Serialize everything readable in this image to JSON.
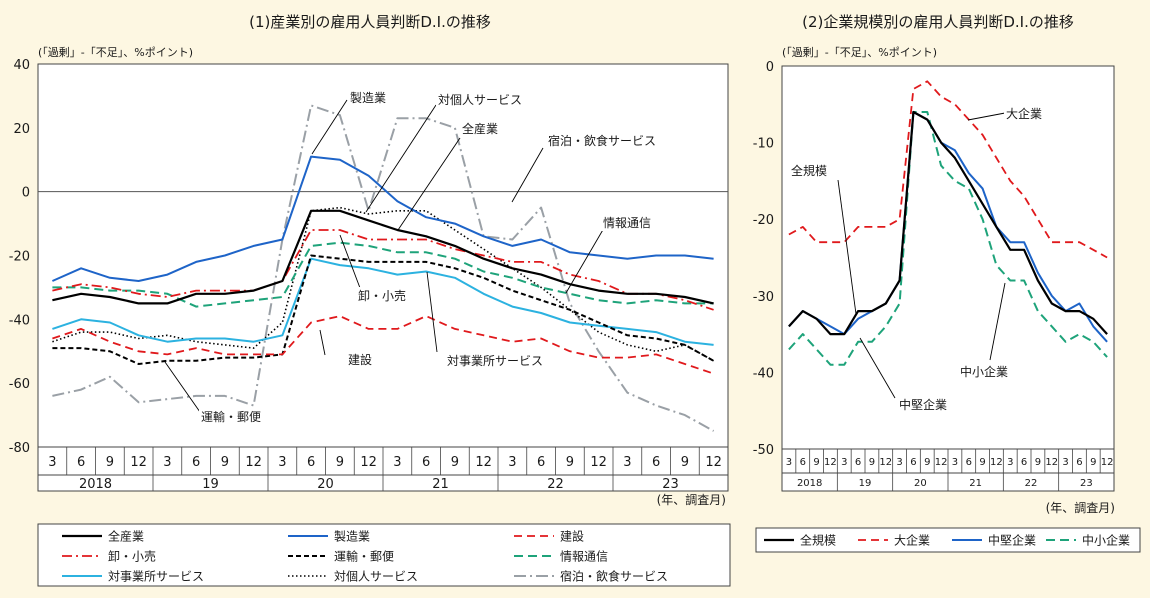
{
  "colors": {
    "background": "#fdf7e2",
    "plot_bg": "#ffffff",
    "black": "#000000",
    "blue": "#1e64c8",
    "red": "#e0191c",
    "green": "#1ea37a",
    "sky": "#2cb2e0",
    "gray": "#9aa0a6"
  },
  "chart_data": [
    {
      "type": "line",
      "title": "(1)産業別の雇用人員判断D.I.の推移",
      "ylabel": "(「過剰」-「不足」、%ポイント)",
      "xlabel": "(年、調査月)",
      "ylim": [
        -80,
        40
      ],
      "yticks": [
        40,
        20,
        0,
        -20,
        -40,
        -60,
        -80
      ],
      "month_labels": [
        "3",
        "6",
        "9",
        "12",
        "3",
        "6",
        "9",
        "12",
        "3",
        "6",
        "9",
        "12",
        "3",
        "6",
        "9",
        "12",
        "3",
        "6",
        "9",
        "12",
        "3",
        "6",
        "9",
        "12"
      ],
      "year_labels": [
        "2018",
        "19",
        "20",
        "21",
        "22",
        "23"
      ],
      "series": [
        {
          "name": "全産業",
          "style": "solid-black",
          "values": [
            -34,
            -32,
            -33,
            -35,
            -35,
            -32,
            -32,
            -31,
            -28,
            -6,
            -6,
            -9,
            -12,
            -14,
            -17,
            -21,
            -24,
            -26,
            -29,
            -31,
            -32,
            -32,
            -33,
            -35
          ]
        },
        {
          "name": "製造業",
          "style": "solid-blue",
          "values": [
            -28,
            -24,
            -27,
            -28,
            -26,
            -22,
            -20,
            -17,
            -15,
            11,
            10,
            5,
            -3,
            -8,
            -10,
            -14,
            -17,
            -15,
            -19,
            -20,
            -21,
            -20,
            -20,
            -21
          ]
        },
        {
          "name": "建設",
          "style": "dash-red",
          "values": [
            -46,
            -43,
            -47,
            -50,
            -51,
            -49,
            -51,
            -51,
            -51,
            -41,
            -39,
            -43,
            -43,
            -39,
            -43,
            -45,
            -47,
            -46,
            -50,
            -52,
            -52,
            -51,
            -54,
            -57
          ]
        },
        {
          "name": "卸・小売",
          "style": "dashdot-red",
          "values": [
            -31,
            -29,
            -30,
            -32,
            -33,
            -31,
            -31,
            -31,
            -28,
            -12,
            -12,
            -15,
            -15,
            -15,
            -18,
            -20,
            -22,
            -22,
            -26,
            -28,
            -32,
            -32,
            -34,
            -37
          ]
        },
        {
          "name": "運輸・郵便",
          "style": "dash-black",
          "values": [
            -49,
            -49,
            -50,
            -54,
            -53,
            -53,
            -52,
            -52,
            -51,
            -20,
            -21,
            -22,
            -22,
            -22,
            -24,
            -27,
            -31,
            -34,
            -37,
            -41,
            -45,
            -46,
            -48,
            -53
          ]
        },
        {
          "name": "情報通信",
          "style": "dash-green",
          "values": [
            -30,
            -30,
            -31,
            -31,
            -32,
            -36,
            -35,
            -34,
            -33,
            -17,
            -16,
            -17,
            -19,
            -19,
            -21,
            -25,
            -27,
            -30,
            -32,
            -34,
            -35,
            -34,
            -35,
            -35
          ]
        },
        {
          "name": "対事業所サービス",
          "style": "solid-sky",
          "values": [
            -43,
            -40,
            -41,
            -45,
            -47,
            -46,
            -46,
            -47,
            -45,
            -21,
            -23,
            -24,
            -26,
            -25,
            -27,
            -32,
            -36,
            -38,
            -41,
            -42,
            -43,
            -44,
            -47,
            -48
          ]
        },
        {
          "name": "対個人サービス",
          "style": "dot-black",
          "values": [
            -47,
            -44,
            -44,
            -46,
            -45,
            -47,
            -48,
            -49,
            -41,
            -6,
            -5,
            -7,
            -6,
            -6,
            -12,
            -18,
            -24,
            -30,
            -37,
            -44,
            -48,
            -50,
            -48,
            -53
          ]
        },
        {
          "name": "宿泊・飲食サービス",
          "style": "dashdot-gray",
          "values": [
            -64,
            -62,
            -58,
            -66,
            -65,
            -64,
            -64,
            -67,
            -15,
            27,
            24,
            -6,
            23,
            23,
            20,
            -14,
            -15,
            -5,
            -35,
            -50,
            -63,
            -67,
            -70,
            -75
          ]
        }
      ],
      "annotations": [
        "製造業",
        "対個人サービス",
        "全産業",
        "宿泊・飲食サービス",
        "情報通信",
        "卸・小売",
        "建設",
        "対事業所サービス",
        "運輸・郵便"
      ]
    },
    {
      "type": "line",
      "title": "(2)企業規模別の雇用人員判断D.I.の推移",
      "ylabel": "(「過剰」-「不足」、%ポイント)",
      "xlabel": "(年、調査月)",
      "ylim": [
        -50,
        0
      ],
      "yticks": [
        0,
        -10,
        -20,
        -30,
        -40,
        -50
      ],
      "month_labels": [
        "3",
        "6",
        "9",
        "12",
        "3",
        "6",
        "9",
        "12",
        "3",
        "6",
        "9",
        "12",
        "3",
        "6",
        "9",
        "12",
        "3",
        "6",
        "9",
        "12",
        "3",
        "6",
        "9",
        "12"
      ],
      "year_labels": [
        "2018",
        "19",
        "20",
        "21",
        "22",
        "23"
      ],
      "series": [
        {
          "name": "全規模",
          "style": "solid-black",
          "values": [
            -34,
            -32,
            -33,
            -35,
            -35,
            -32,
            -32,
            -31,
            -28,
            -6,
            -7,
            -10,
            -12,
            -15,
            -18,
            -21,
            -24,
            -24,
            -28,
            -31,
            -32,
            -32,
            -33,
            -35
          ]
        },
        {
          "name": "大企業",
          "style": "dash-red",
          "values": [
            -22,
            -21,
            -23,
            -23,
            -23,
            -21,
            -21,
            -21,
            -20,
            -3,
            -2,
            -4,
            -5,
            -7,
            -9,
            -12,
            -15,
            -17,
            -20,
            -23,
            -23,
            -23,
            -24,
            -25
          ]
        },
        {
          "name": "中堅企業",
          "style": "solid-blue",
          "values": [
            -34,
            -32,
            -33,
            -34,
            -35,
            -33,
            -32,
            -31,
            -28,
            -6,
            -7,
            -10,
            -11,
            -14,
            -16,
            -21,
            -23,
            -23,
            -27,
            -30,
            -32,
            -31,
            -34,
            -36
          ]
        },
        {
          "name": "中小企業",
          "style": "dash-green",
          "values": [
            -37,
            -35,
            -37,
            -39,
            -39,
            -36,
            -36,
            -34,
            -31,
            -6,
            -6,
            -13,
            -15,
            -16,
            -20,
            -26,
            -28,
            -28,
            -32,
            -34,
            -36,
            -35,
            -36,
            -38
          ]
        }
      ],
      "annotations": [
        "大企業",
        "全規模",
        "中堅企業",
        "中小企業"
      ]
    }
  ]
}
